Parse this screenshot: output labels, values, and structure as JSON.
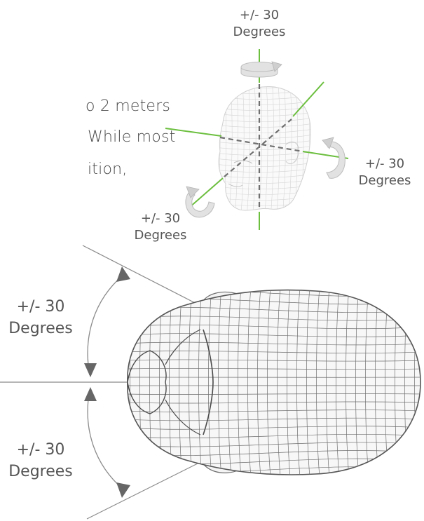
{
  "paragraph_fragments": [
    "o 2 meters",
    "While most",
    "ition,"
  ],
  "labels": {
    "top_angle": "+/- 30",
    "top_unit": "Degrees",
    "right_angle": "+/- 30",
    "right_unit": "Degrees",
    "left_angle": "+/- 30",
    "left_unit": "Degrees",
    "upper_angle": "+/- 30",
    "upper_unit": "Degrees",
    "lower_angle": "+/- 30",
    "lower_unit": "Degrees"
  },
  "colors": {
    "axis_green": "#6cbf3f",
    "axis_dashed": "#707070",
    "rotation_arrow": "#cfcfcf",
    "wireframe": "#6e6e6e",
    "guide_line": "#8a8a8a"
  }
}
